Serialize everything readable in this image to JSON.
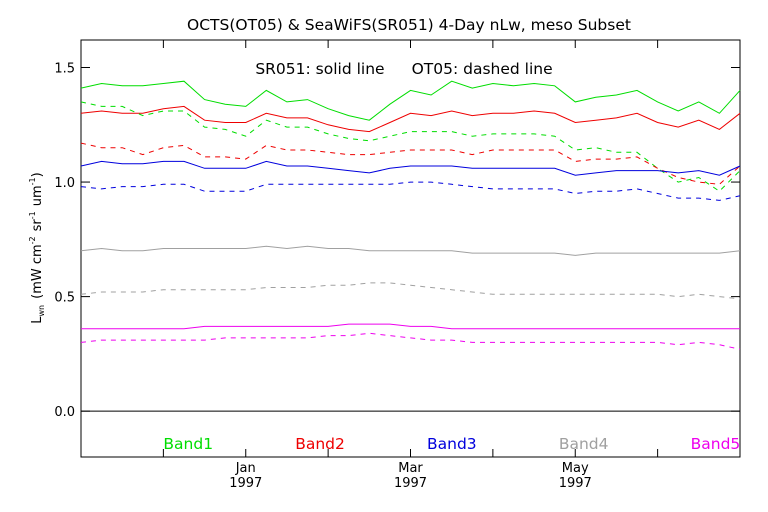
{
  "chart_data": {
    "type": "line",
    "title": "OCTS(OT05) & SeaWiFS(SR051) 4-Day nLw, meso Subset",
    "annotation": {
      "solid": "SR051: solid line",
      "dashed": "OT05: dashed line"
    },
    "ylabel": {
      "main": "L",
      "sub": "wn",
      "units_open": "(mW cm",
      "exp1": "-2",
      "sr": "sr",
      "exp2": "-1",
      "um": "um",
      "exp3": "-1",
      "close": ")"
    },
    "ylim": [
      -0.2,
      1.62
    ],
    "yticks": [
      {
        "value": 0.0,
        "label": "0.0"
      },
      {
        "value": 0.5,
        "label": "0.5"
      },
      {
        "value": 1.0,
        "label": "1.0"
      },
      {
        "value": 1.5,
        "label": "1.5"
      }
    ],
    "xlim": [
      0,
      32
    ],
    "xticks": [
      {
        "pos": 0,
        "line1": "",
        "line2": ""
      },
      {
        "pos": 4,
        "line1": "",
        "line2": ""
      },
      {
        "pos": 8,
        "line1": "Jan",
        "line2": "1997"
      },
      {
        "pos": 12,
        "line1": "",
        "line2": ""
      },
      {
        "pos": 16,
        "line1": "Mar",
        "line2": "1997"
      },
      {
        "pos": 20,
        "line1": "",
        "line2": ""
      },
      {
        "pos": 24,
        "line1": "May",
        "line2": "1997"
      },
      {
        "pos": 28,
        "line1": "",
        "line2": ""
      }
    ],
    "zero_line": 0.0,
    "x": [
      0,
      1,
      2,
      3,
      4,
      5,
      6,
      7,
      8,
      9,
      10,
      11,
      12,
      13,
      14,
      15,
      16,
      17,
      18,
      19,
      20,
      21,
      22,
      23,
      24,
      25,
      26,
      27,
      28,
      29,
      30,
      31,
      32
    ],
    "series": [
      {
        "name": "Band1",
        "color": "#00dd00",
        "style": "solid",
        "values": [
          1.41,
          1.43,
          1.42,
          1.42,
          1.43,
          1.44,
          1.36,
          1.34,
          1.33,
          1.4,
          1.35,
          1.36,
          1.32,
          1.29,
          1.27,
          1.34,
          1.4,
          1.38,
          1.44,
          1.41,
          1.43,
          1.42,
          1.43,
          1.42,
          1.35,
          1.37,
          1.38,
          1.4,
          1.35,
          1.31,
          1.35,
          1.3,
          1.4
        ]
      },
      {
        "name": "Band2",
        "color": "#ee0000",
        "style": "solid",
        "values": [
          1.3,
          1.31,
          1.3,
          1.3,
          1.32,
          1.33,
          1.27,
          1.26,
          1.26,
          1.3,
          1.28,
          1.28,
          1.25,
          1.23,
          1.22,
          1.26,
          1.3,
          1.29,
          1.31,
          1.29,
          1.3,
          1.3,
          1.31,
          1.3,
          1.26,
          1.27,
          1.28,
          1.3,
          1.26,
          1.24,
          1.27,
          1.23,
          1.3
        ]
      },
      {
        "name": "Band1",
        "color": "#00dd00",
        "style": "dashed",
        "values": [
          1.35,
          1.33,
          1.33,
          1.29,
          1.31,
          1.31,
          1.24,
          1.23,
          1.2,
          1.27,
          1.24,
          1.24,
          1.21,
          1.19,
          1.18,
          1.2,
          1.22,
          1.22,
          1.22,
          1.2,
          1.21,
          1.21,
          1.21,
          1.2,
          1.14,
          1.15,
          1.13,
          1.13,
          1.06,
          1.0,
          1.02,
          0.96,
          1.05
        ]
      },
      {
        "name": "Band2",
        "color": "#ee0000",
        "style": "dashed",
        "values": [
          1.17,
          1.15,
          1.15,
          1.12,
          1.15,
          1.16,
          1.11,
          1.11,
          1.1,
          1.16,
          1.14,
          1.14,
          1.13,
          1.12,
          1.12,
          1.13,
          1.14,
          1.14,
          1.14,
          1.12,
          1.14,
          1.14,
          1.14,
          1.14,
          1.09,
          1.1,
          1.1,
          1.11,
          1.06,
          1.02,
          1.0,
          0.99,
          1.07
        ]
      },
      {
        "name": "Band3",
        "color": "#0000dd",
        "style": "solid",
        "values": [
          1.07,
          1.09,
          1.08,
          1.08,
          1.09,
          1.09,
          1.06,
          1.06,
          1.06,
          1.09,
          1.07,
          1.07,
          1.06,
          1.05,
          1.04,
          1.06,
          1.07,
          1.07,
          1.07,
          1.06,
          1.06,
          1.06,
          1.06,
          1.06,
          1.03,
          1.04,
          1.05,
          1.05,
          1.05,
          1.04,
          1.05,
          1.03,
          1.07
        ]
      },
      {
        "name": "Band3",
        "color": "#0000dd",
        "style": "dashed",
        "values": [
          0.98,
          0.97,
          0.98,
          0.98,
          0.99,
          0.99,
          0.96,
          0.96,
          0.96,
          0.99,
          0.99,
          0.99,
          0.99,
          0.99,
          0.99,
          0.99,
          1.0,
          1.0,
          0.99,
          0.98,
          0.97,
          0.97,
          0.97,
          0.97,
          0.95,
          0.96,
          0.96,
          0.97,
          0.95,
          0.93,
          0.93,
          0.92,
          0.94
        ]
      },
      {
        "name": "Band4",
        "color": "#a0a0a0",
        "style": "solid",
        "values": [
          0.7,
          0.71,
          0.7,
          0.7,
          0.71,
          0.71,
          0.71,
          0.71,
          0.71,
          0.72,
          0.71,
          0.72,
          0.71,
          0.71,
          0.7,
          0.7,
          0.7,
          0.7,
          0.7,
          0.69,
          0.69,
          0.69,
          0.69,
          0.69,
          0.68,
          0.69,
          0.69,
          0.69,
          0.69,
          0.69,
          0.69,
          0.69,
          0.7
        ]
      },
      {
        "name": "Band4",
        "color": "#a0a0a0",
        "style": "dashed",
        "values": [
          0.51,
          0.52,
          0.52,
          0.52,
          0.53,
          0.53,
          0.53,
          0.53,
          0.53,
          0.54,
          0.54,
          0.54,
          0.55,
          0.55,
          0.56,
          0.56,
          0.55,
          0.54,
          0.53,
          0.52,
          0.51,
          0.51,
          0.51,
          0.51,
          0.51,
          0.51,
          0.51,
          0.51,
          0.51,
          0.5,
          0.51,
          0.5,
          0.49
        ]
      },
      {
        "name": "Band5",
        "color": "#ee00ee",
        "style": "solid",
        "values": [
          0.36,
          0.36,
          0.36,
          0.36,
          0.36,
          0.36,
          0.37,
          0.37,
          0.37,
          0.37,
          0.37,
          0.37,
          0.37,
          0.38,
          0.38,
          0.38,
          0.37,
          0.37,
          0.36,
          0.36,
          0.36,
          0.36,
          0.36,
          0.36,
          0.36,
          0.36,
          0.36,
          0.36,
          0.36,
          0.36,
          0.36,
          0.36,
          0.36
        ]
      },
      {
        "name": "Band5",
        "color": "#ee00ee",
        "style": "dashed",
        "values": [
          0.3,
          0.31,
          0.31,
          0.31,
          0.31,
          0.31,
          0.31,
          0.32,
          0.32,
          0.32,
          0.32,
          0.32,
          0.33,
          0.33,
          0.34,
          0.33,
          0.32,
          0.31,
          0.31,
          0.3,
          0.3,
          0.3,
          0.3,
          0.3,
          0.3,
          0.3,
          0.3,
          0.3,
          0.3,
          0.29,
          0.3,
          0.29,
          0.27
        ]
      }
    ],
    "legend": [
      {
        "label": "Band1",
        "color": "#00dd00",
        "pos": 3
      },
      {
        "label": "Band2",
        "color": "#ee0000",
        "pos": 11
      },
      {
        "label": "Band3",
        "color": "#0000dd",
        "pos": 19
      },
      {
        "label": "Band4",
        "color": "#a0a0a0",
        "pos": 27
      },
      {
        "label": "Band5",
        "color": "#ee00ee",
        "pos": 35
      }
    ],
    "legend_placement": "bottom, inside plot area",
    "grid": false,
    "colors": {
      "axis": "#000000",
      "background": "#ffffff"
    }
  }
}
